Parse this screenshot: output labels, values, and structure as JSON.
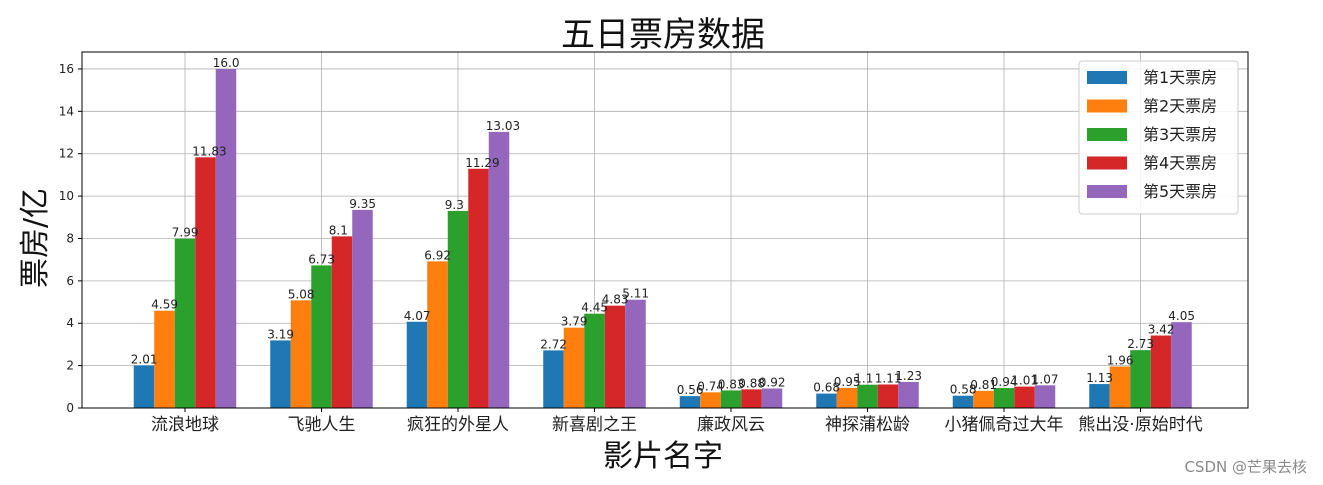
{
  "chart_data": {
    "type": "bar",
    "title": "五日票房数据",
    "xlabel": "影片名字",
    "ylabel": "票房/亿",
    "categories": [
      "流浪地球",
      "飞驰人生",
      "疯狂的外星人",
      "新喜剧之王",
      "廉政风云",
      "神探蒲松龄",
      "小猪佩奇过大年",
      "熊出没·原始时代"
    ],
    "ylim": [
      0,
      16.8
    ],
    "yticks": [
      "0",
      "2",
      "4",
      "6",
      "8",
      "10",
      "12",
      "14",
      "16"
    ],
    "grid": true,
    "legend_position": "top-right",
    "series": [
      {
        "name": "第1天票房",
        "color": "#1f77b4",
        "values": [
          2.01,
          3.19,
          4.07,
          2.72,
          0.56,
          0.68,
          0.58,
          1.13
        ]
      },
      {
        "name": "第2天票房",
        "color": "#ff7f0e",
        "values": [
          4.59,
          5.08,
          6.92,
          3.79,
          0.74,
          0.95,
          0.81,
          1.96
        ]
      },
      {
        "name": "第3天票房",
        "color": "#2ca02c",
        "values": [
          7.99,
          6.73,
          9.3,
          4.45,
          0.83,
          1.1,
          0.94,
          2.73
        ]
      },
      {
        "name": "第4天票房",
        "color": "#d62728",
        "values": [
          11.83,
          8.1,
          11.29,
          4.83,
          0.88,
          1.11,
          1.01,
          3.42
        ]
      },
      {
        "name": "第5天票房",
        "color": "#9467bd",
        "values": [
          16.0,
          9.35,
          13.03,
          5.11,
          0.92,
          1.23,
          1.07,
          4.05
        ]
      }
    ],
    "value_labels": [
      [
        "2.01",
        "3.19",
        "4.07",
        "2.72",
        "0.56",
        "0.68",
        "0.58",
        "1.13"
      ],
      [
        "4.59",
        "5.08",
        "6.92",
        "3.79",
        "0.74",
        "0.95",
        "0.81",
        "1.96"
      ],
      [
        "7.99",
        "6.73",
        "9.3",
        "4.45",
        "0.83",
        "1.1",
        "0.94",
        "2.73"
      ],
      [
        "11.83",
        "8.1",
        "11.29",
        "4.83",
        "0.88",
        "1.11",
        "1.01",
        "3.42"
      ],
      [
        "16.0",
        "9.35",
        "13.03",
        "5.11",
        "0.92",
        "1.23",
        "1.07",
        "4.05"
      ]
    ]
  },
  "watermark": "CSDN @芒果去核"
}
